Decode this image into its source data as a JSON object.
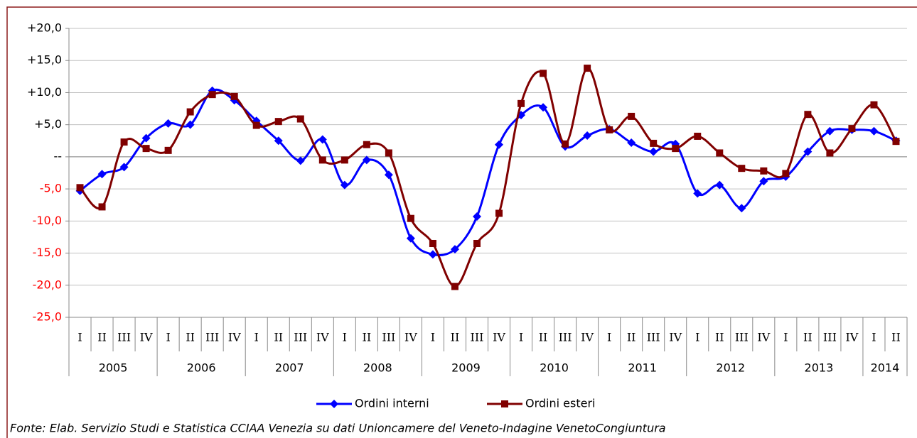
{
  "chart_data": {
    "type": "line",
    "categories": [
      "I",
      "II",
      "III",
      "IV",
      "I",
      "II",
      "III",
      "IV",
      "I",
      "II",
      "III",
      "IV",
      "I",
      "II",
      "III",
      "IV",
      "I",
      "II",
      "III",
      "IV",
      "I",
      "II",
      "III",
      "IV",
      "I",
      "II",
      "III",
      "IV",
      "I",
      "II",
      "III",
      "IV",
      "I",
      "II",
      "III",
      "IV",
      "I",
      "II"
    ],
    "years": [
      "2005",
      "2006",
      "2007",
      "2008",
      "2009",
      "2010",
      "2011",
      "2012",
      "2013",
      "2014"
    ],
    "series": [
      {
        "name": "Ordini interni",
        "color": "#0000ff",
        "marker": "diamond",
        "values": [
          -5.3,
          -2.7,
          -1.6,
          2.9,
          5.2,
          5.0,
          10.3,
          8.8,
          5.6,
          2.5,
          -0.6,
          2.7,
          -4.4,
          -0.5,
          -2.8,
          -12.7,
          -15.2,
          -14.4,
          -9.3,
          1.9,
          6.5,
          7.7,
          1.6,
          3.3,
          4.3,
          2.2,
          0.8,
          2.0,
          -5.7,
          -4.4,
          -8.0,
          -3.8,
          -3.1,
          0.8,
          4.0,
          4.2,
          4.0,
          2.5
        ]
      },
      {
        "name": "Ordini esteri",
        "color": "#800000",
        "marker": "square",
        "values": [
          -4.8,
          -7.8,
          2.3,
          1.3,
          1.0,
          7.0,
          9.7,
          9.4,
          4.9,
          5.5,
          5.9,
          -0.5,
          -0.5,
          1.9,
          0.6,
          -9.6,
          -13.5,
          -20.2,
          -13.5,
          -8.8,
          8.3,
          13.0,
          2.0,
          13.8,
          4.2,
          6.3,
          2.1,
          1.3,
          3.2,
          0.6,
          -1.8,
          -2.2,
          -2.6,
          6.6,
          0.6,
          4.4,
          8.1,
          2.4
        ]
      }
    ],
    "ylim": [
      -25,
      20
    ],
    "yticks": [
      {
        "value": -25,
        "label": "-25,0"
      },
      {
        "value": -20,
        "label": "-20,0"
      },
      {
        "value": -15,
        "label": "-15,0"
      },
      {
        "value": -10,
        "label": "-10,0"
      },
      {
        "value": -5,
        "label": "-5,0"
      },
      {
        "value": 0,
        "label": "--"
      },
      {
        "value": 5,
        "label": "+5,0"
      },
      {
        "value": 10,
        "label": "+10,0"
      },
      {
        "value": 15,
        "label": "+15,0"
      },
      {
        "value": 20,
        "label": "+20,0"
      }
    ],
    "grid": true,
    "legend": "bottom",
    "source": "Fonte: Elab. Servizio Studi e Statistica CCIAA Venezia su dati Unioncamere del Veneto-Indagine VenetoCongiuntura"
  }
}
